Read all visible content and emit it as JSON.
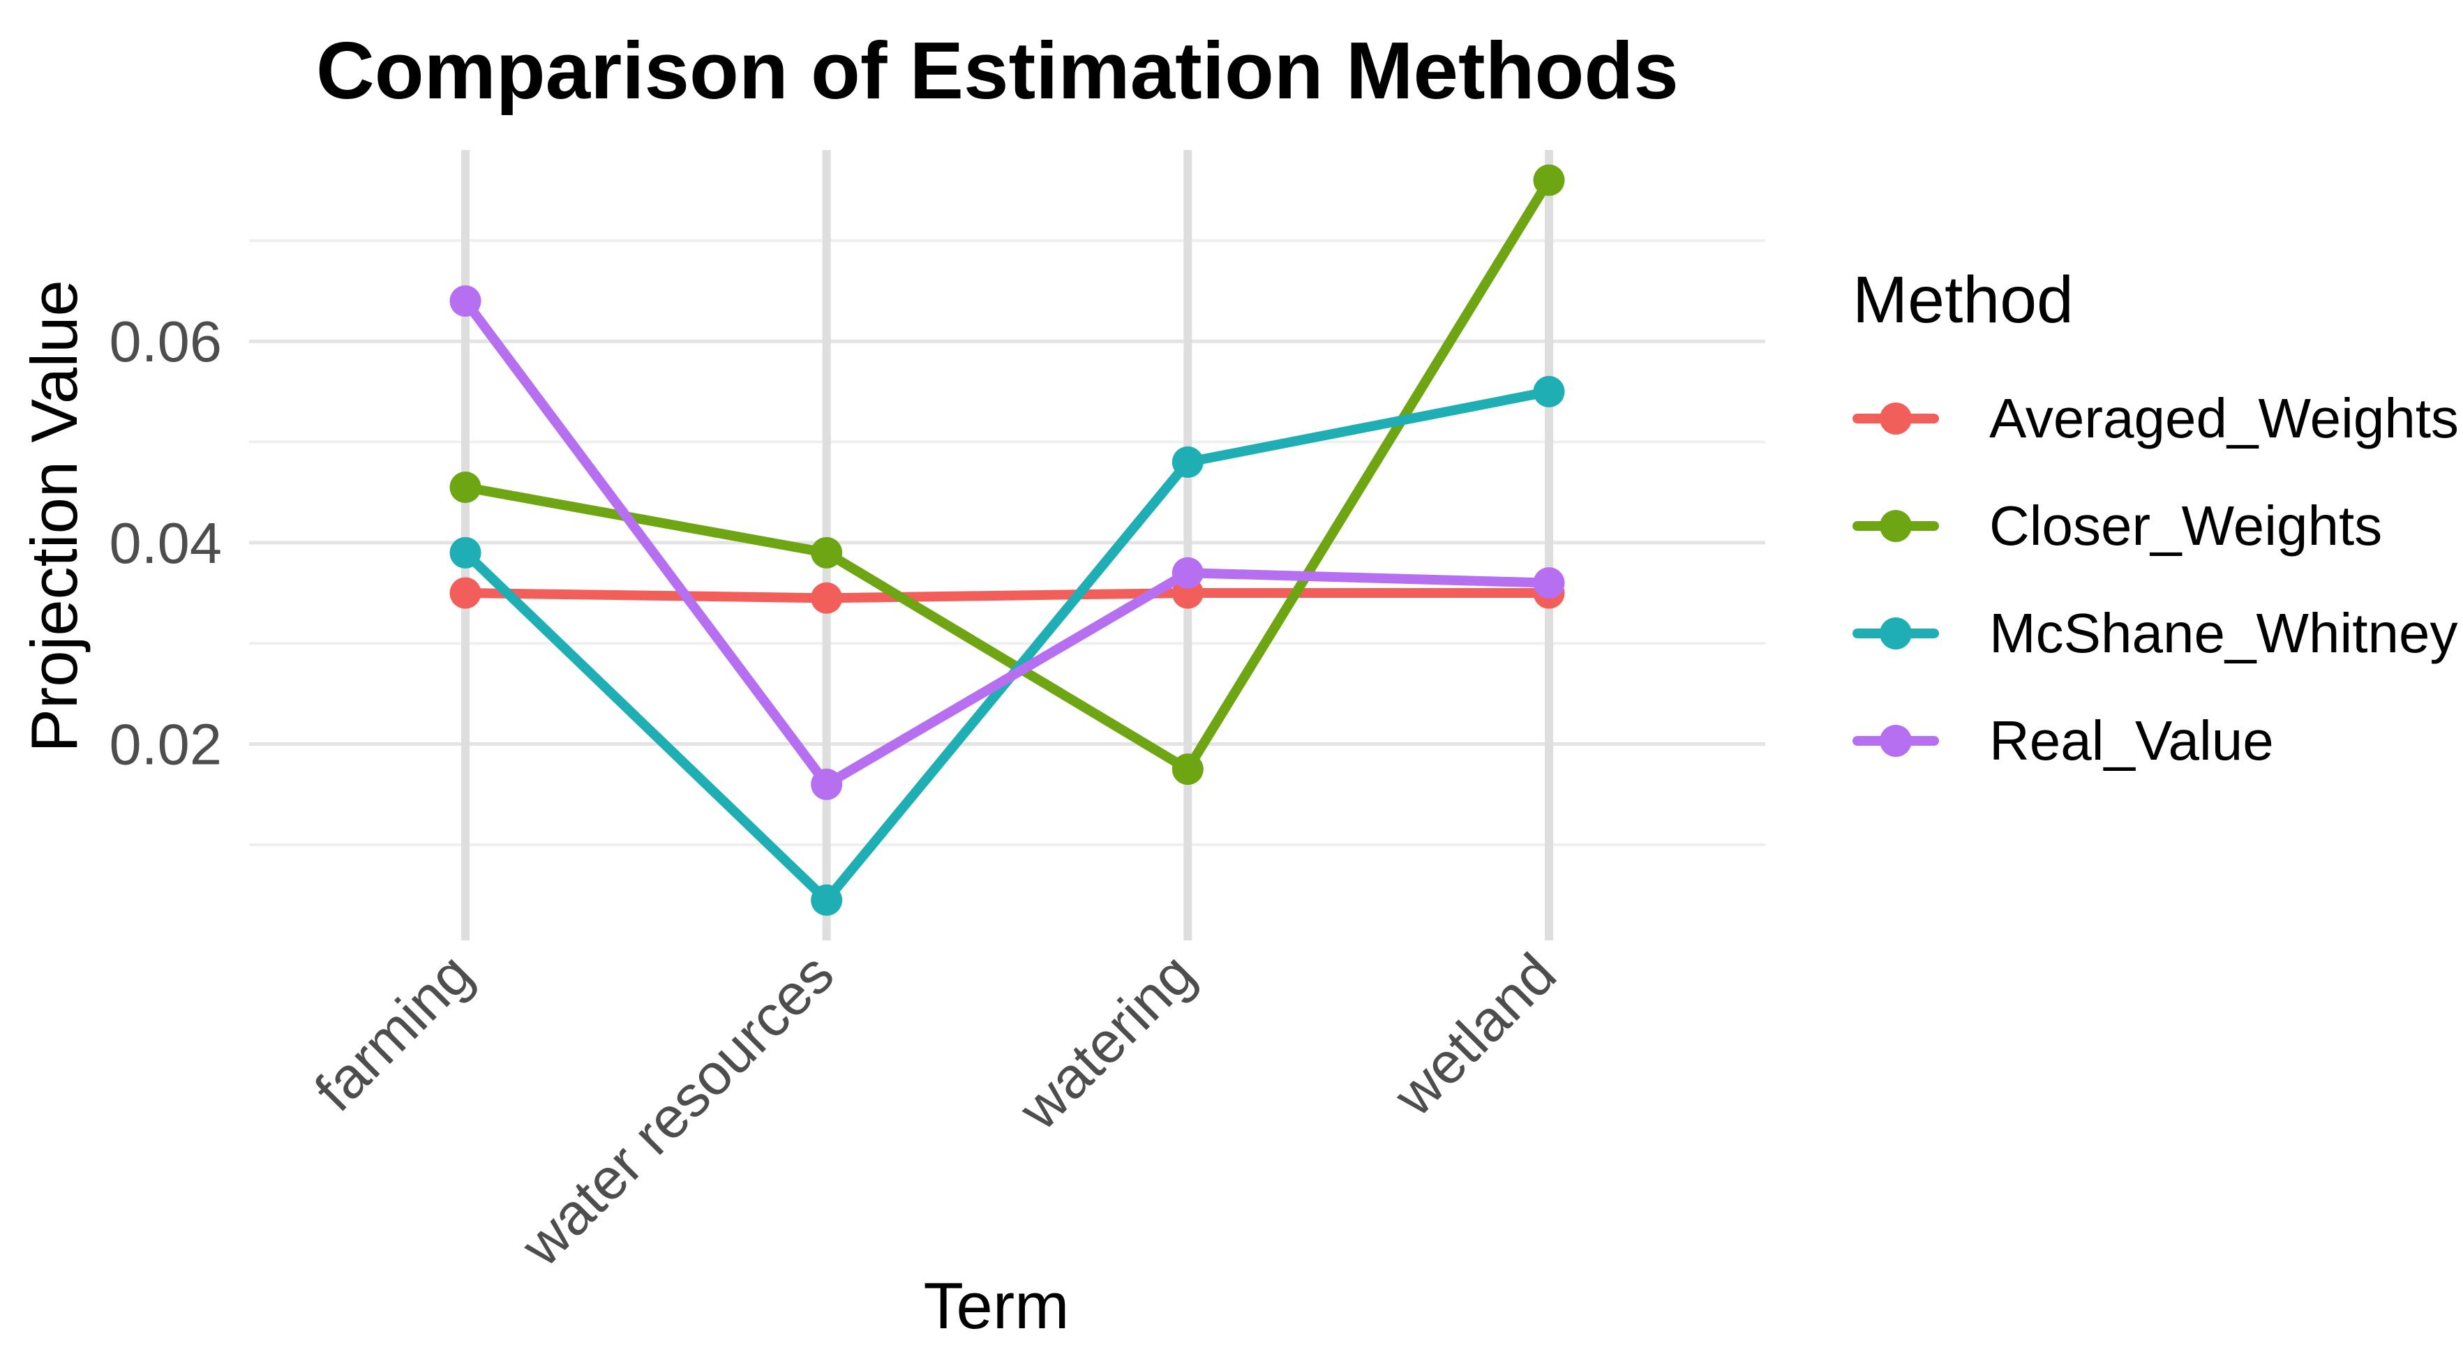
{
  "figure": {
    "background": "#FFFFFF"
  },
  "chart_data": {
    "type": "line",
    "title": "Comparison of Estimation Methods",
    "xlabel": "Term",
    "ylabel": "Projection Value",
    "legend_title": "Method",
    "legend_position": "right",
    "grid": true,
    "categories": [
      "farming",
      "water resources",
      "watering",
      "wetland"
    ],
    "series": [
      {
        "name": "Averaged_Weights",
        "color": "#F25F5B",
        "values": [
          0.035,
          0.0345,
          0.035,
          0.035
        ]
      },
      {
        "name": "Closer_Weights",
        "color": "#6DA513",
        "values": [
          0.0455,
          0.039,
          0.0175,
          0.076
        ]
      },
      {
        "name": "McShane_Whitney",
        "color": "#20AEB5",
        "values": [
          0.039,
          0.0045,
          0.048,
          0.055
        ]
      },
      {
        "name": "Real_Value",
        "color": "#B56FF0",
        "values": [
          0.064,
          0.016,
          0.037,
          0.036
        ]
      }
    ],
    "y_ticks": [
      {
        "value": 0.02,
        "label": "0.02"
      },
      {
        "value": 0.04,
        "label": "0.04"
      },
      {
        "value": 0.06,
        "label": "0.06"
      }
    ],
    "y_minor_ticks": [
      0.01,
      0.03,
      0.05,
      0.07
    ],
    "ylim": [
      0.0005,
      0.079
    ],
    "grid_colors": {
      "major": "#E4E4E4",
      "minor": "#EFEFEF",
      "vertical": "#DEDEDE"
    },
    "tick_label_color": "#4D4D4D"
  }
}
